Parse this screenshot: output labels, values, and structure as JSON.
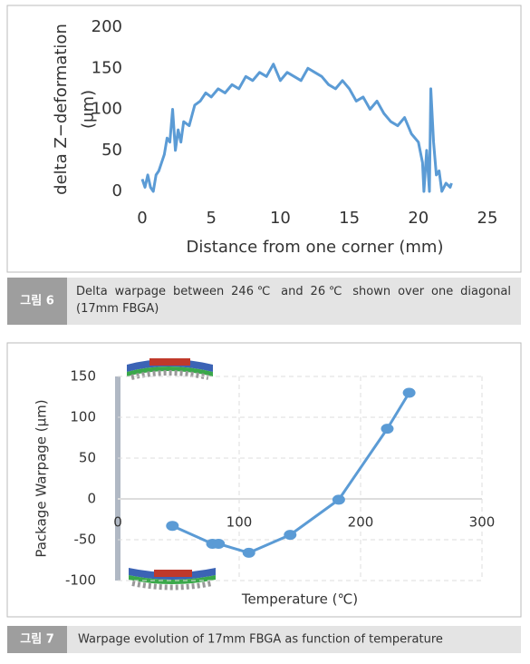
{
  "chart_data": [
    {
      "type": "line",
      "xlabel": "Distance from one corner (mm)",
      "ylabel": [
        "delta Z−deformation",
        "(μm)"
      ],
      "x": [
        0,
        0.2,
        0.4,
        0.6,
        0.8,
        1,
        1.2,
        1.4,
        1.6,
        1.8,
        2,
        2.2,
        2.4,
        2.6,
        2.8,
        3,
        3.4,
        3.8,
        4.2,
        4.6,
        5,
        5.5,
        6,
        6.5,
        7,
        7.5,
        8,
        8.5,
        9,
        9.5,
        10,
        10.5,
        11,
        11.5,
        12,
        12.5,
        13,
        13.5,
        14,
        14.5,
        15,
        15.5,
        16,
        16.5,
        17,
        17.5,
        18,
        18.5,
        19,
        19.5,
        20,
        20.3,
        20.4,
        20.6,
        20.8,
        20.9,
        21.1,
        21.3,
        21.5,
        21.7,
        22,
        22.3,
        22.4
      ],
      "values": [
        15,
        5,
        20,
        5,
        0,
        20,
        25,
        35,
        45,
        65,
        60,
        100,
        50,
        75,
        60,
        85,
        80,
        105,
        110,
        120,
        115,
        125,
        120,
        130,
        125,
        140,
        135,
        145,
        140,
        155,
        135,
        145,
        140,
        135,
        150,
        145,
        140,
        130,
        125,
        135,
        125,
        110,
        115,
        100,
        110,
        95,
        85,
        80,
        90,
        70,
        60,
        35,
        0,
        50,
        0,
        125,
        60,
        20,
        25,
        0,
        10,
        5,
        10
      ],
      "color": "#5b9bd5",
      "xlim": [
        0,
        25
      ],
      "ylim": [
        0,
        200
      ],
      "xticks": [
        0,
        5,
        10,
        15,
        20,
        25
      ],
      "yticks": [
        0,
        50,
        100,
        150,
        200
      ],
      "grid": false,
      "markers": false,
      "caption_label": "그림 6",
      "caption": "Delta warpage between 246℃ and 26℃ shown over one diagonal (17mm FBGA)"
    },
    {
      "type": "line",
      "xlabel": "Temperature (℃)",
      "ylabel": [
        "Package Warpage (μm)"
      ],
      "x": [
        45,
        78,
        83,
        108,
        142,
        182,
        222,
        240
      ],
      "values": [
        -33,
        -55,
        -55,
        -66,
        -44,
        -1,
        86,
        130
      ],
      "color": "#5b9bd5",
      "xlim": [
        0,
        300
      ],
      "ylim": [
        -100,
        150
      ],
      "xticks": [
        0,
        100,
        200,
        300
      ],
      "yticks": [
        -100,
        -50,
        0,
        50,
        100,
        150
      ],
      "grid": true,
      "markers": true,
      "caption_label": "그림 7",
      "caption": "Warpage evolution of 17mm FBGA as function of temperature"
    }
  ]
}
